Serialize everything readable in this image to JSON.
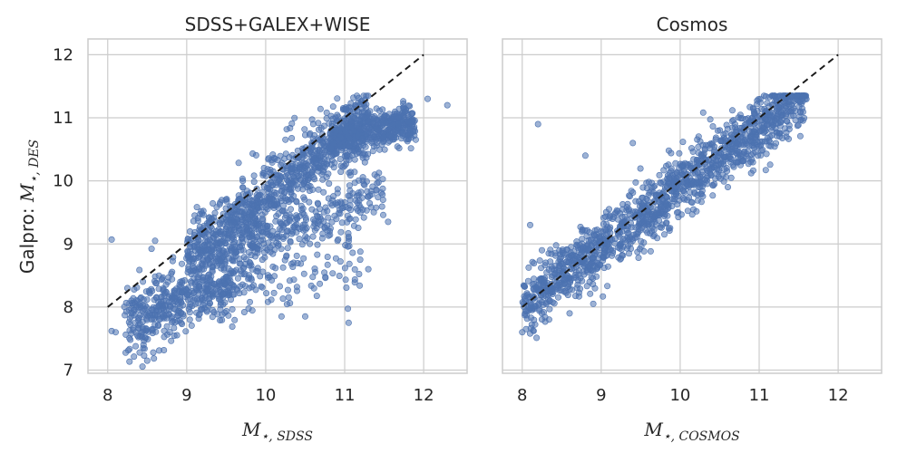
{
  "chart_data": [
    {
      "type": "scatter",
      "title": "SDSS+GALEX+WISE",
      "xlabel_main": "M",
      "xlabel_sub": "⋆, SDSS",
      "ylabel_prefix": "Galpro: ",
      "ylabel_main": "M",
      "ylabel_sub": "⋆, DES",
      "xlim": [
        7.75,
        12.55
      ],
      "ylim": [
        6.95,
        12.25
      ],
      "xticks": [
        8,
        9,
        10,
        11,
        12
      ],
      "yticks": [
        7,
        8,
        9,
        10,
        11,
        12
      ],
      "grid": true,
      "point_color": "#4c72b0",
      "reference_line": {
        "x": [
          8,
          12
        ],
        "y": [
          8,
          12
        ],
        "style": "dashed",
        "color": "#1a1a1a"
      },
      "clusters": [
        {
          "x_range": [
            9.0,
            11.3
          ],
          "slope": 0.98,
          "intercept": -0.05,
          "scatter": 0.28,
          "n": 900
        },
        {
          "x_range": [
            10.8,
            11.9
          ],
          "slope": 0.25,
          "intercept": 7.95,
          "scatter": 0.15,
          "n": 500
        },
        {
          "x_range": [
            8.2,
            10.0
          ],
          "slope": 0.9,
          "intercept": 0.2,
          "scatter": 0.32,
          "n": 350
        },
        {
          "x_range": [
            8.3,
            9.6
          ],
          "slope": 0.35,
          "intercept": 4.95,
          "scatter": 0.18,
          "n": 200
        },
        {
          "x_range": [
            9.8,
            11.5
          ],
          "slope": 0.5,
          "intercept": 4.1,
          "scatter": 0.2,
          "n": 220
        },
        {
          "x_range": [
            9.3,
            11.3
          ],
          "slope": 0.3,
          "intercept": 5.4,
          "scatter": 0.3,
          "n": 120
        }
      ],
      "outliers": [
        [
          8.05,
          9.07
        ],
        [
          8.1,
          7.6
        ],
        [
          8.05,
          7.62
        ],
        [
          8.3,
          8.1
        ],
        [
          8.5,
          7.15
        ],
        [
          8.45,
          7.35
        ],
        [
          9.1,
          9.45
        ],
        [
          11.3,
          8.6
        ],
        [
          10.5,
          7.85
        ],
        [
          10.2,
          7.85
        ],
        [
          11.05,
          7.75
        ],
        [
          12.3,
          11.2
        ],
        [
          12.05,
          11.3
        ],
        [
          11.55,
          9.35
        ],
        [
          8.6,
          9.05
        ],
        [
          8.25,
          8.3
        ],
        [
          9.6,
          8.2
        ],
        [
          11.2,
          9.5
        ]
      ]
    },
    {
      "type": "scatter",
      "title": "Cosmos",
      "xlabel_main": "M",
      "xlabel_sub": "⋆, COSMOS",
      "xlim": [
        7.75,
        12.55
      ],
      "ylim": [
        6.95,
        12.25
      ],
      "xticks": [
        8,
        9,
        10,
        11,
        12
      ],
      "yticks": [
        7,
        8,
        9,
        10,
        11,
        12
      ],
      "grid": true,
      "point_color": "#4c72b0",
      "reference_line": {
        "x": [
          8,
          12
        ],
        "y": [
          8,
          12
        ],
        "style": "dashed",
        "color": "#1a1a1a"
      },
      "clusters": [
        {
          "x_range": [
            8.0,
            11.6
          ],
          "slope": 0.95,
          "intercept": 0.4,
          "scatter": 0.25,
          "n": 1400
        }
      ],
      "outliers": [
        [
          8.2,
          10.9
        ],
        [
          8.0,
          7.6
        ],
        [
          8.1,
          7.58
        ],
        [
          8.25,
          8.9
        ],
        [
          8.8,
          10.4
        ],
        [
          8.1,
          9.3
        ],
        [
          9.8,
          9.15
        ],
        [
          10.9,
          10.7
        ],
        [
          11.35,
          10.95
        ],
        [
          8.6,
          7.9
        ],
        [
          9.4,
          10.6
        ],
        [
          8.9,
          8.05
        ]
      ]
    }
  ]
}
